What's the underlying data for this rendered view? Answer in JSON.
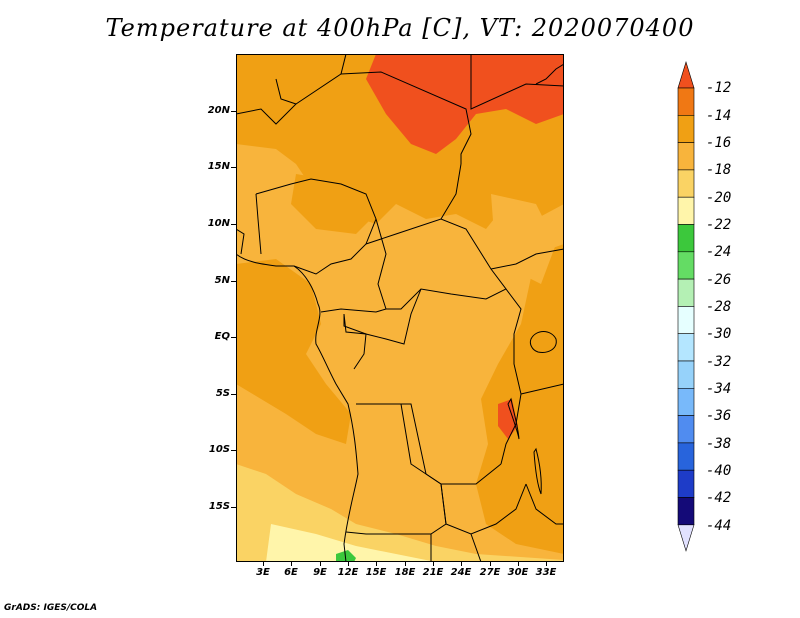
{
  "title": "Temperature at 400hPa [C], VT: 2020070400",
  "footer": "GrADS: IGES/COLA",
  "y_axis": {
    "labels": [
      "20N",
      "15N",
      "10N",
      "5N",
      "EQ",
      "5S",
      "10S",
      "15S"
    ]
  },
  "x_axis": {
    "labels": [
      "3E",
      "6E",
      "9E",
      "12E",
      "15E",
      "18E",
      "21E",
      "24E",
      "27E",
      "30E",
      "33E"
    ]
  },
  "colorbar": {
    "labels": [
      "-12",
      "-14",
      "-16",
      "-18",
      "-20",
      "-22",
      "-24",
      "-26",
      "-28",
      "-30",
      "-32",
      "-34",
      "-36",
      "-38",
      "-40",
      "-42",
      "-44"
    ],
    "colors": [
      "#f0501e",
      "#f07814",
      "#f0a014",
      "#f8b43c",
      "#fad364",
      "#fff5aa",
      "#3cc83c",
      "#64dc64",
      "#b4f0b4",
      "#e6ffff",
      "#b4e6ff",
      "#96d2fa",
      "#78b9fa",
      "#508cf0",
      "#2864dc",
      "#1e3cc8",
      "#140a78"
    ],
    "over_color": "#f0501e",
    "under_color": "#e1e1ff"
  },
  "map_colors": {
    "t14": "#f07814",
    "t16": "#f0a014",
    "t18": "#f8b43c",
    "t20": "#fad364",
    "t22": "#fff5aa",
    "t24": "#3cc83c",
    "t12": "#f0501e"
  }
}
